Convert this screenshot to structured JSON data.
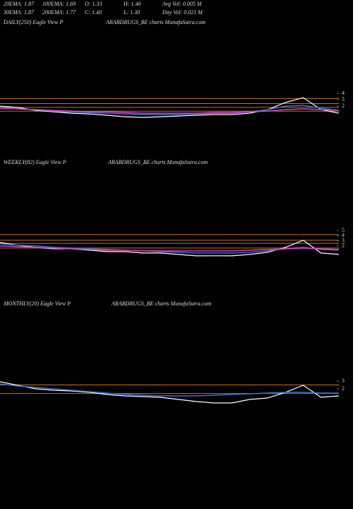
{
  "stats": [
    [
      "20EMA: 1.87",
      "100EMA: 1.69",
      "O: 1.33",
      "H: 1.40",
      "Avg Vol: 0.005 M"
    ],
    [
      "30EMA: 1.87",
      "200EMA: 1.77",
      "C: 1.40",
      "L: 1.30",
      "Day Vol: 0.021 M"
    ]
  ],
  "chart_data": [
    {
      "type": "line",
      "title": "DAILY(250) Eagle  View  P",
      "subtitle": "ARABDRUGS_BE charts MunafaSutra.com",
      "ylim": [
        -5.2,
        14.2
      ],
      "yticks": [
        2,
        3,
        4
      ],
      "levels": [
        3.2,
        2.4,
        1.8,
        1.2
      ],
      "level_color": "#c87020",
      "series": [
        {
          "name": "Price",
          "color": "#ffffff",
          "values": [
            2,
            1.78,
            1.33,
            1.11,
            0.89,
            0.78,
            0.56,
            0.33,
            0.22,
            0.33,
            0.44,
            0.56,
            0.67,
            0.67,
            0.89,
            1.44,
            2.56,
            3.33,
            1.44,
            0.89
          ]
        },
        {
          "name": "EMA",
          "color": "#3a6fd8",
          "values": [
            1.78,
            1.56,
            1.44,
            1.22,
            1.11,
            1.0,
            0.89,
            0.78,
            0.67,
            0.67,
            0.67,
            0.78,
            0.89,
            0.89,
            1.11,
            1.44,
            2.0,
            2.11,
            1.67,
            1.33
          ]
        },
        {
          "name": "MA",
          "color": "#e040c0",
          "values": [
            1.67,
            1.56,
            1.44,
            1.33,
            1.22,
            1.11,
            1.11,
            1.0,
            0.89,
            0.89,
            0.89,
            0.89,
            1.0,
            1.0,
            1.11,
            1.22,
            1.44,
            1.56,
            1.44,
            1.33
          ]
        }
      ]
    },
    {
      "type": "line",
      "title": "WEEKLY(82) Eagle  View  P",
      "subtitle": "ARABDRUGS_BE charts MunafaSutra.com",
      "ylim": [
        -7.2,
        16.8
      ],
      "yticks": [
        2,
        3,
        4,
        5
      ],
      "levels": [
        4.2,
        3.1,
        2.5,
        1.6
      ],
      "level_color": "#c87020",
      "series": [
        {
          "name": "Price",
          "color": "#ffffff",
          "values": [
            2.68,
            2.14,
            1.73,
            1.45,
            1.45,
            1.18,
            0.9,
            0.9,
            0.63,
            0.63,
            0.36,
            0.08,
            0.1,
            0.08,
            0.36,
            0.77,
            1.73,
            3.1,
            0.63,
            0.36
          ]
        },
        {
          "name": "EMA",
          "color": "#3a6fd8",
          "values": [
            2.41,
            2.14,
            2.0,
            1.73,
            1.59,
            1.45,
            1.32,
            1.18,
            1.04,
            0.9,
            0.77,
            0.63,
            0.63,
            0.63,
            0.77,
            1.04,
            1.45,
            1.73,
            1.32,
            1.18
          ]
        },
        {
          "name": "MA",
          "color": "#e040c0",
          "values": [
            2.0,
            1.86,
            1.73,
            1.59,
            1.45,
            1.32,
            1.18,
            1.18,
            1.04,
            1.04,
            1.04,
            1.04,
            1.04,
            1.04,
            1.18,
            1.32,
            1.45,
            1.59,
            1.45,
            1.32
          ]
        }
      ]
    },
    {
      "type": "line",
      "title": "MONTHLY(20) Eagle  View  P",
      "subtitle": "ARABDRUGS_BE charts MunafaSutra.com",
      "ylim": [
        -13,
        12
      ],
      "yticks": [
        2,
        3
      ],
      "levels": [
        2.5,
        1.4
      ],
      "level_color": "#c87020",
      "series": [
        {
          "name": "Price",
          "color": "#ffffff",
          "values": [
            2.91,
            2.45,
            2.0,
            1.82,
            1.73,
            1.55,
            1.27,
            1.09,
            1.0,
            0.91,
            0.64,
            0.36,
            0.18,
            0.18,
            0.64,
            0.82,
            1.55,
            2.45,
            0.91,
            1.09
          ]
        },
        {
          "name": "EMA",
          "color": "#3a6fd8",
          "values": [
            2.64,
            2.36,
            2.18,
            2.0,
            1.82,
            1.64,
            1.45,
            1.27,
            1.18,
            1.09,
            1.09,
            1.09,
            1.18,
            1.27,
            1.36,
            1.45,
            1.55,
            1.55,
            1.45,
            1.45
          ]
        }
      ]
    }
  ]
}
